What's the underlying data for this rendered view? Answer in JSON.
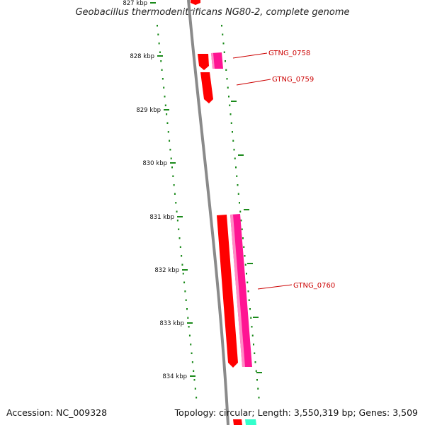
{
  "title": "Geobacillus thermodenitrificans NG80-2, complete genome",
  "footer": {
    "accession": "Accession: NC_009328",
    "summary": "Topology: circular; Length: 3,550,319 bp; Genes: 3,509"
  },
  "axis": {
    "unit": "kbp",
    "ticks": [
      "827 kbp",
      "828 kbp",
      "829 kbp",
      "830 kbp",
      "831 kbp",
      "832 kbp",
      "833 kbp",
      "834 kbp"
    ]
  },
  "genes": [
    {
      "name": "GTNG_0758",
      "color": "#cc0000"
    },
    {
      "name": "GTNG_0759",
      "color": "#cc0000"
    },
    {
      "name": "GTNG_0760",
      "color": "#cc0000"
    }
  ],
  "colors": {
    "backbone": "#888888",
    "ticks": "#1a8a1a",
    "forward_gene": "#ff0000",
    "reverse_gene": "#ff1493",
    "label": "#cc0000",
    "extra_gene": "#33ffcc"
  }
}
